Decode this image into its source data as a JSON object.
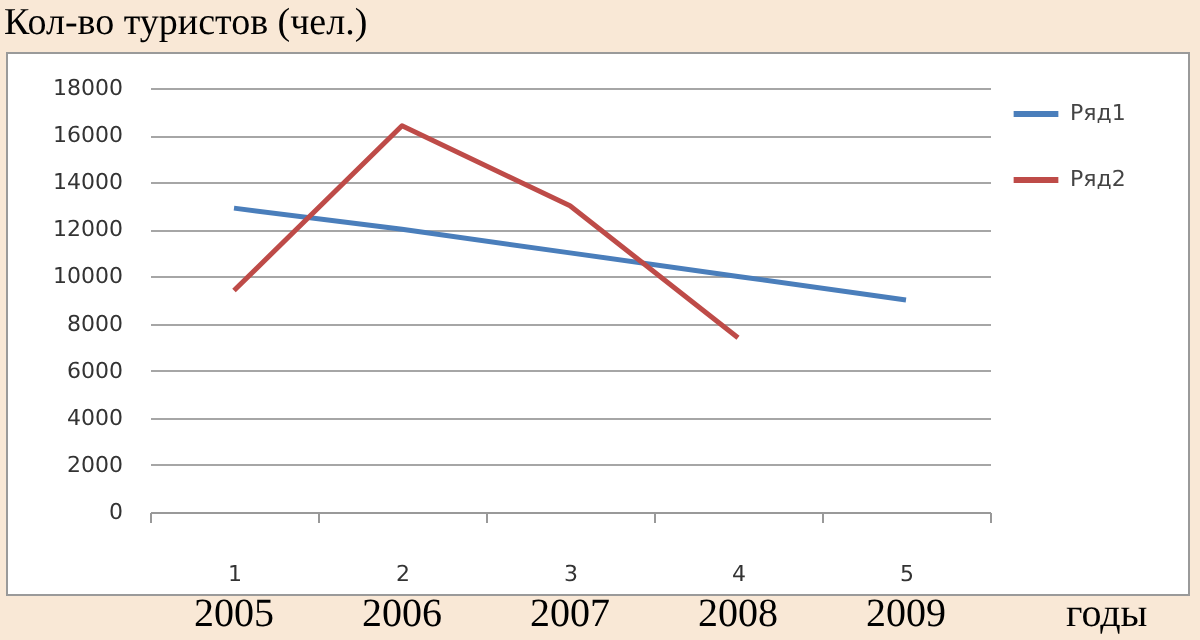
{
  "chart_data": {
    "type": "line",
    "title": "Кол-во туристов (чел.)",
    "categories": [
      "1",
      "2",
      "3",
      "4",
      "5"
    ],
    "series": [
      {
        "name": "Ряд1",
        "color": "#4a7ebb",
        "values": [
          12900,
          12000,
          11000,
          10000,
          9000
        ]
      },
      {
        "name": "Ряд2",
        "color": "#be4b48",
        "values": [
          9400,
          16400,
          13000,
          7400,
          null
        ]
      }
    ],
    "ylim": [
      0,
      18000
    ],
    "yticks": [
      0,
      2000,
      4000,
      6000,
      8000,
      10000,
      12000,
      14000,
      16000,
      18000
    ],
    "grid": "y",
    "legend": "right",
    "annotations": [
      "2005",
      "2006",
      "2007",
      "2008",
      "2009",
      "годы"
    ]
  }
}
